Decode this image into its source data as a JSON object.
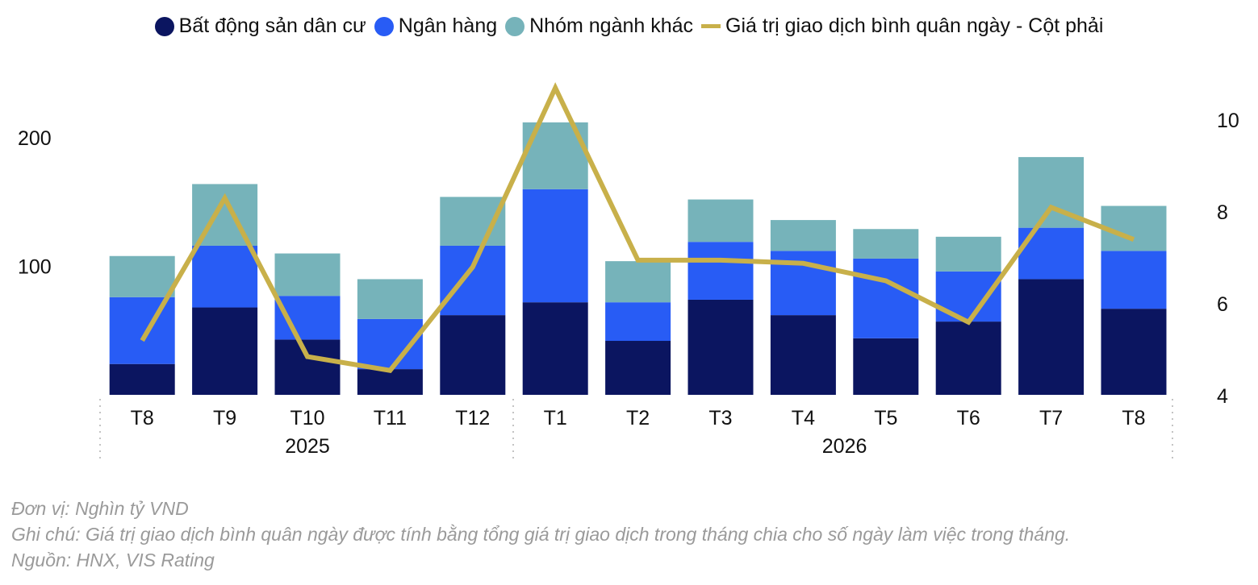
{
  "legend": {
    "items": [
      {
        "label": "Bất động sản dân cư",
        "kind": "dot",
        "color": "#0b1560"
      },
      {
        "label": "Ngân hàng",
        "kind": "dot",
        "color": "#285cf5"
      },
      {
        "label": "Nhóm ngành khác",
        "kind": "dot",
        "color": "#76b3ba"
      },
      {
        "label": "Giá trị giao dịch bình quân ngày - Cột phải",
        "kind": "line",
        "color": "#c8b04a"
      }
    ]
  },
  "notes": {
    "unit": "Đơn vị: Nghìn tỷ VND",
    "note": "Ghi chú: Giá trị giao dịch bình quân ngày được tính bằng tổng giá trị giao dịch trong tháng chia cho số ngày làm việc trong tháng.",
    "source": "Nguồn: HNX, VIS Rating"
  },
  "chart_data": {
    "type": "bar",
    "stacked": true,
    "categories": [
      "T8",
      "T9",
      "T10",
      "T11",
      "T12",
      "T1",
      "T2",
      "T3",
      "T4",
      "T5",
      "T6",
      "T7",
      "T8"
    ],
    "year_groups": [
      {
        "label": "2025",
        "from": 0,
        "to": 4
      },
      {
        "label": "2026",
        "from": 5,
        "to": 12
      }
    ],
    "series": [
      {
        "name": "Bất động sản dân cư",
        "color": "#0b1560",
        "values": [
          24,
          68,
          43,
          20,
          62,
          72,
          42,
          74,
          62,
          44,
          57,
          90,
          67
        ]
      },
      {
        "name": "Ngân hàng",
        "color": "#285cf5",
        "values": [
          52,
          48,
          34,
          39,
          54,
          88,
          30,
          45,
          50,
          62,
          39,
          40,
          45
        ]
      },
      {
        "name": "Nhóm ngành khác",
        "color": "#76b3ba",
        "values": [
          32,
          48,
          33,
          31,
          38,
          52,
          32,
          33,
          24,
          23,
          27,
          55,
          35
        ]
      }
    ],
    "line": {
      "name": "Giá trị giao dịch bình quân ngày - Cột phải",
      "color": "#c8b04a",
      "axis": "right",
      "values": [
        5.2,
        8.3,
        4.85,
        4.55,
        6.8,
        10.7,
        6.95,
        6.95,
        6.88,
        6.5,
        5.6,
        8.1,
        7.4
      ]
    },
    "y_left": {
      "ticks": [
        100,
        200
      ],
      "range": [
        0,
        260
      ]
    },
    "y_right": {
      "ticks": [
        4,
        6,
        8,
        10
      ],
      "range": [
        4,
        11.5
      ]
    },
    "grid": false
  }
}
